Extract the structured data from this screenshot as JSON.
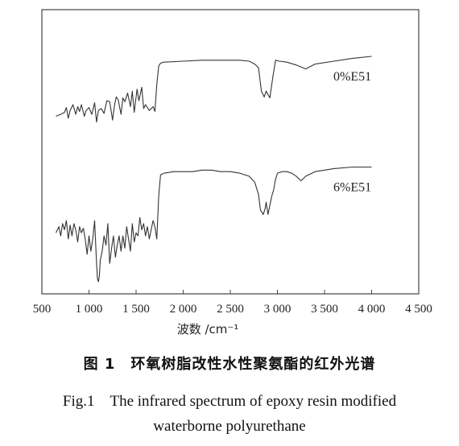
{
  "chart_data": {
    "type": "line",
    "xlabel": "波数 /cm⁻¹",
    "ylabel": "",
    "xlim": [
      500,
      4500
    ],
    "xticks": [
      500,
      1000,
      1500,
      2000,
      2500,
      3000,
      3500,
      4000,
      4500
    ],
    "xtick_labels": [
      "500",
      "1 000",
      "1 500",
      "2 000",
      "2 500",
      "3 000",
      "3 500",
      "4 000",
      "4 500"
    ],
    "grid": false,
    "legend": "inline labels at right of each trace",
    "series": [
      {
        "name": "0%E51",
        "color": "#333333",
        "x": [
          650,
          700,
          740,
          760,
          780,
          800,
          830,
          860,
          880,
          900,
          920,
          950,
          970,
          1000,
          1030,
          1060,
          1080,
          1100,
          1130,
          1160,
          1190,
          1220,
          1250,
          1270,
          1290,
          1310,
          1340,
          1360,
          1380,
          1410,
          1440,
          1460,
          1480,
          1510,
          1530,
          1560,
          1580,
          1600,
          1640,
          1680,
          1700,
          1720,
          1740,
          1760,
          1800,
          2000,
          2200,
          2400,
          2600,
          2700,
          2760,
          2800,
          2830,
          2860,
          2880,
          2920,
          2950,
          2980,
          3020,
          3100,
          3200,
          3300,
          3400,
          3600,
          3800,
          4000
        ],
        "y": [
          0.72,
          0.7,
          0.68,
          0.63,
          0.74,
          0.66,
          0.6,
          0.7,
          0.62,
          0.67,
          0.6,
          0.72,
          0.66,
          0.63,
          0.7,
          0.58,
          0.78,
          0.66,
          0.64,
          0.69,
          0.56,
          0.57,
          0.76,
          0.61,
          0.52,
          0.55,
          0.7,
          0.53,
          0.57,
          0.48,
          0.62,
          0.46,
          0.68,
          0.44,
          0.56,
          0.42,
          0.64,
          0.6,
          0.66,
          0.62,
          0.67,
          0.39,
          0.2,
          0.17,
          0.16,
          0.15,
          0.14,
          0.14,
          0.14,
          0.15,
          0.18,
          0.22,
          0.46,
          0.52,
          0.46,
          0.53,
          0.32,
          0.14,
          0.15,
          0.16,
          0.19,
          0.23,
          0.18,
          0.15,
          0.12,
          0.1
        ]
      },
      {
        "name": "6%E51",
        "color": "#333333",
        "x": [
          650,
          680,
          700,
          720,
          740,
          760,
          780,
          800,
          820,
          840,
          860,
          880,
          900,
          920,
          940,
          960,
          980,
          1000,
          1020,
          1040,
          1060,
          1080,
          1090,
          1100,
          1110,
          1120,
          1140,
          1160,
          1180,
          1200,
          1220,
          1240,
          1260,
          1280,
          1300,
          1320,
          1340,
          1360,
          1380,
          1400,
          1420,
          1440,
          1460,
          1480,
          1500,
          1520,
          1540,
          1560,
          1580,
          1600,
          1620,
          1640,
          1660,
          1680,
          1700,
          1720,
          1740,
          1760,
          1800,
          1900,
          2000,
          2100,
          2200,
          2300,
          2400,
          2500,
          2600,
          2700,
          2760,
          2800,
          2820,
          2850,
          2870,
          2880,
          2900,
          2920,
          2940,
          2960,
          2980,
          3000,
          3050,
          3100,
          3150,
          3200,
          3250,
          3300,
          3400,
          3500,
          3600,
          3800,
          4000
        ],
        "y": [
          0.68,
          0.64,
          0.7,
          0.62,
          0.66,
          0.6,
          0.72,
          0.63,
          0.7,
          0.62,
          0.66,
          0.74,
          0.64,
          0.68,
          0.65,
          0.72,
          0.82,
          0.7,
          0.8,
          0.72,
          0.6,
          0.88,
          0.98,
          1.0,
          0.96,
          0.86,
          0.8,
          0.7,
          0.76,
          0.62,
          0.88,
          0.78,
          0.7,
          0.84,
          0.76,
          0.7,
          0.8,
          0.7,
          0.78,
          0.64,
          0.72,
          0.8,
          0.62,
          0.74,
          0.68,
          0.7,
          0.58,
          0.66,
          0.62,
          0.7,
          0.64,
          0.72,
          0.66,
          0.6,
          0.64,
          0.72,
          0.44,
          0.3,
          0.29,
          0.28,
          0.28,
          0.28,
          0.27,
          0.27,
          0.28,
          0.28,
          0.29,
          0.31,
          0.35,
          0.43,
          0.53,
          0.56,
          0.52,
          0.48,
          0.56,
          0.5,
          0.44,
          0.4,
          0.33,
          0.29,
          0.28,
          0.28,
          0.29,
          0.31,
          0.34,
          0.31,
          0.28,
          0.27,
          0.26,
          0.25,
          0.25
        ]
      }
    ]
  },
  "caption": {
    "cn": "图 1　环氧树脂改性水性聚氨酯的红外光谱",
    "en_line1": "Fig.1　The infrared spectrum of epoxy resin modified",
    "en_line2": "waterborne polyurethane"
  }
}
